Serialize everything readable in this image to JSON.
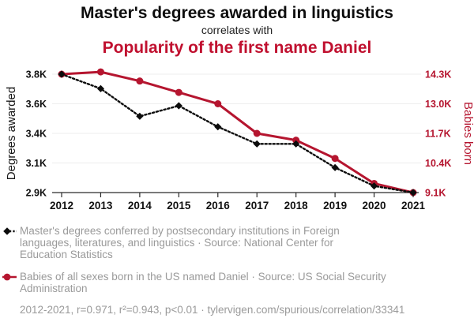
{
  "header": {
    "title": "Master's degrees awarded in linguistics",
    "connector": "correlates with",
    "subtitle": "Popularity of the first name Daniel"
  },
  "colors": {
    "black_series": "#0c0c0c",
    "red_series": "#b5152f",
    "red_title": "#c0102f",
    "legend_gray": "#9a9a9a",
    "gridline": "#ededed",
    "axis": "#2b2b2b"
  },
  "chart_data": {
    "type": "line",
    "x": [
      2012,
      2013,
      2014,
      2015,
      2016,
      2017,
      2018,
      2019,
      2020,
      2021
    ],
    "x_tick_labels": [
      "2012",
      "2013",
      "2014",
      "2015",
      "2016",
      "2017",
      "2018",
      "2019",
      "2020",
      "2021"
    ],
    "series": [
      {
        "id": "degrees",
        "name": "Master's degrees awarded in linguistics",
        "axis": "left",
        "color": "#0c0c0c",
        "style": "dotted",
        "marker": "diamond",
        "values": [
          3800,
          3690,
          3480,
          3560,
          3400,
          3270,
          3270,
          3090,
          2950,
          2900
        ]
      },
      {
        "id": "babies",
        "name": "Popularity of the first name Daniel",
        "axis": "right",
        "color": "#b5152f",
        "style": "solid",
        "marker": "circle",
        "values": [
          14300,
          14400,
          14000,
          13500,
          13000,
          11700,
          11400,
          10600,
          9500,
          9100
        ]
      }
    ],
    "left_axis": {
      "title": "Degrees awarded",
      "min": 2900,
      "max": 3800,
      "tick_labels": [
        "3.8K",
        "3.6K",
        "3.4K",
        "3.1K",
        "2.9K"
      ]
    },
    "right_axis": {
      "title": "Babies born",
      "min": 9100,
      "max": 14300,
      "tick_labels": [
        "14.3K",
        "13.0K",
        "11.7K",
        "10.4K",
        "9.1K"
      ]
    },
    "grid": true,
    "legend_position": "bottom"
  },
  "legend": {
    "degrees": "Master's degrees conferred by postsecondary institutions in Foreign\nlanguages, literatures, and linguistics · Source: National Center for\nEducation Statistics",
    "babies": "Babies of all sexes born in the US named Daniel · Source: US Social Security\nAdministration"
  },
  "footer": {
    "text": "2012-2021, r=0.971, r²=0.943, p<0.01 · tylervigen.com/spurious/correlation/33341"
  }
}
